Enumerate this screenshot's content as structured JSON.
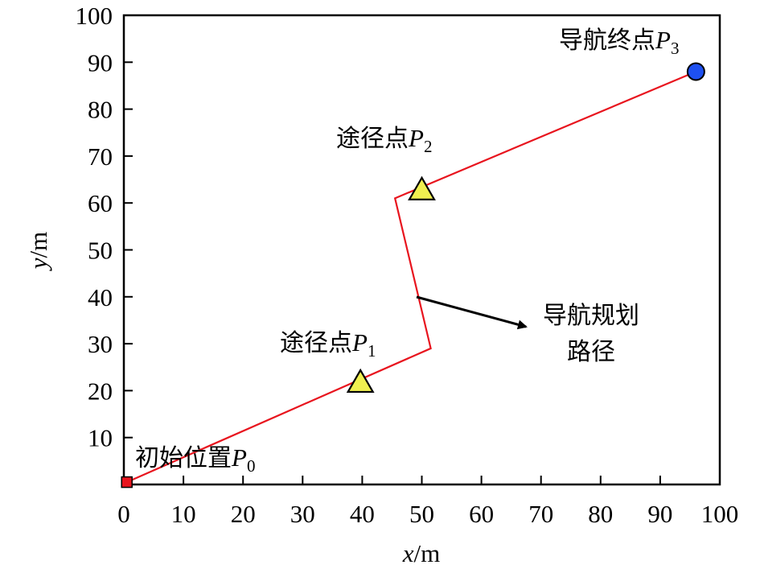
{
  "chart_data": {
    "type": "line",
    "xlabel": {
      "var": "x",
      "unit": "/m"
    },
    "ylabel": {
      "var": "y",
      "unit": "/m"
    },
    "xlim": [
      0,
      100
    ],
    "ylim": [
      0,
      100
    ],
    "xticks": [
      0,
      10,
      20,
      30,
      40,
      50,
      60,
      70,
      80,
      90,
      100
    ],
    "yticks": [
      10,
      20,
      30,
      40,
      50,
      60,
      70,
      80,
      90,
      100
    ],
    "grid": false,
    "path": {
      "color": "#e8141e",
      "points": [
        [
          0.5,
          0.5
        ],
        [
          51.5,
          29
        ],
        [
          45.5,
          61
        ],
        [
          96,
          88
        ]
      ]
    },
    "markers": [
      {
        "id": "p0",
        "shape": "square",
        "x": 0.5,
        "y": 0.5,
        "color": "#e8141e"
      },
      {
        "id": "p1",
        "shape": "triangle",
        "x": 39.7,
        "y": 21.5,
        "color": "#f0f050"
      },
      {
        "id": "p2",
        "shape": "triangle",
        "x": 50,
        "y": 62.5,
        "color": "#f0f050"
      },
      {
        "id": "p3",
        "shape": "circle",
        "x": 96,
        "y": 88,
        "color": "#1e50f0"
      }
    ],
    "annotations": [
      {
        "id": "start",
        "text": "初始位置",
        "italic": "P",
        "sub": "0"
      },
      {
        "id": "waypoint1",
        "text": "途径点",
        "italic": "P",
        "sub": "1"
      },
      {
        "id": "waypoint2",
        "text": "途径点",
        "italic": "P",
        "sub": "2"
      },
      {
        "id": "end",
        "text": "导航终点",
        "italic": "P",
        "sub": "3"
      }
    ],
    "arrow_label": {
      "line1": "导航规划",
      "line2": "路径"
    }
  }
}
